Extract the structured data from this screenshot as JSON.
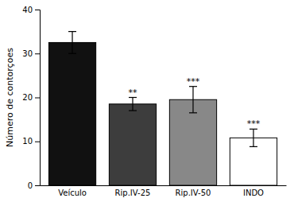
{
  "chart_data": {
    "type": "bar",
    "categories": [
      "Veículo",
      "Rip.IV-25",
      "Rip.IV-50",
      "INDO"
    ],
    "values": [
      32.5,
      18.5,
      19.5,
      10.8
    ],
    "errors": [
      2.5,
      1.5,
      3.0,
      2.0
    ],
    "colors": [
      "#111111",
      "#3d3d3d",
      "#888888",
      "#ffffff"
    ],
    "annotations": [
      null,
      "**",
      "***",
      "***"
    ],
    "ylabel": "Número de contorçoes",
    "ylim": [
      0,
      40
    ],
    "yticks": [
      0,
      10,
      20,
      30,
      40
    ],
    "grid": false
  }
}
